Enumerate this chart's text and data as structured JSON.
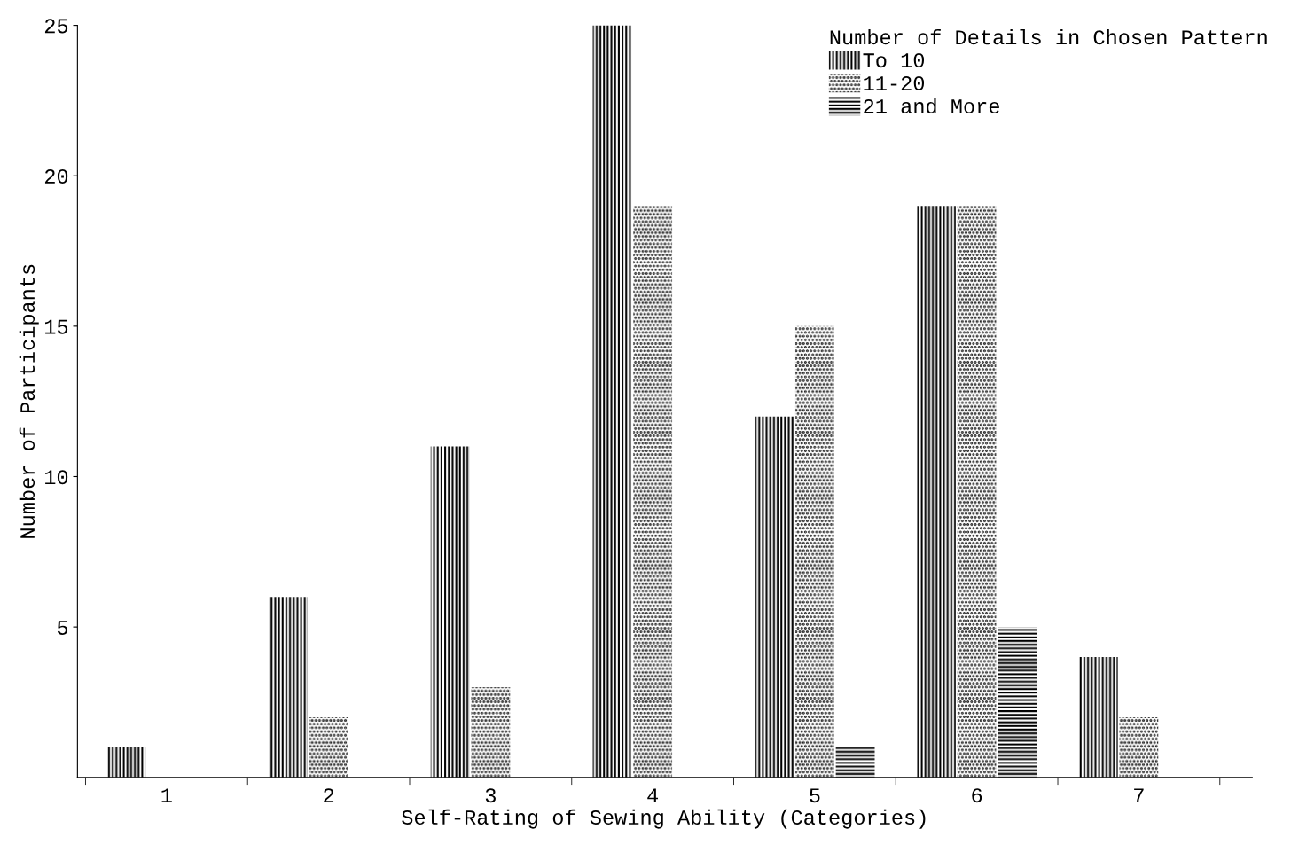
{
  "chart_data": {
    "type": "bar",
    "xlabel": "Self-Rating of Sewing Ability (Categories)",
    "ylabel": "Number of Participants",
    "legend_title": "Number of Details in Chosen Pattern",
    "categories": [
      "1",
      "2",
      "3",
      "4",
      "5",
      "6",
      "7"
    ],
    "series": [
      {
        "name": "To 10",
        "color": "#000000",
        "values": [
          1,
          6,
          11,
          25,
          12,
          19,
          4
        ]
      },
      {
        "name": "11-20",
        "color": "#000000",
        "values": [
          0,
          2,
          3,
          19,
          15,
          19,
          2
        ]
      },
      {
        "name": "21 and More",
        "color": "#000000",
        "values": [
          0,
          0,
          0,
          0,
          1,
          5,
          0
        ]
      }
    ],
    "ylim": [
      0,
      25
    ],
    "yticks": [
      5,
      10,
      15,
      20,
      25
    ],
    "grid": false,
    "legend": "top right"
  }
}
